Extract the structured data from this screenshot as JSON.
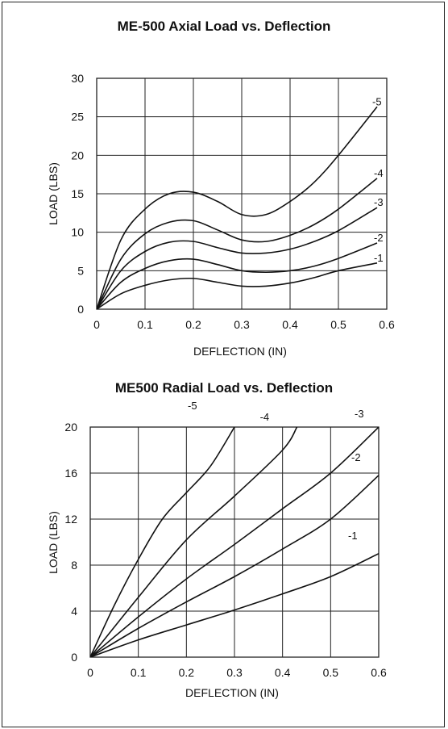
{
  "chart_data": [
    {
      "type": "line",
      "title": "ME-500 Axial Load vs. Deflection",
      "xlabel": "DEFLECTION (IN)",
      "ylabel": "LOAD (LBS)",
      "xlim": [
        0,
        0.6
      ],
      "ylim": [
        0,
        30
      ],
      "xticks": [
        0,
        0.1,
        0.2,
        0.3,
        0.4,
        0.5,
        0.6
      ],
      "yticks": [
        0,
        5,
        10,
        15,
        20,
        25,
        30
      ],
      "xtick_labels": [
        "0",
        "0.1",
        "0.2",
        "0.3",
        "0.4",
        "0.5",
        "0.6"
      ],
      "ytick_labels": [
        "0",
        "5",
        "10",
        "15",
        "20",
        "25",
        "30"
      ],
      "grid": true,
      "series": [
        {
          "name": "-1",
          "x": [
            0,
            0.05,
            0.1,
            0.15,
            0.2,
            0.25,
            0.3,
            0.35,
            0.4,
            0.45,
            0.5,
            0.58
          ],
          "y": [
            0,
            2.0,
            3.1,
            3.8,
            4.0,
            3.5,
            3.0,
            3.0,
            3.4,
            4.1,
            5.0,
            6.0
          ]
        },
        {
          "name": "-2",
          "x": [
            0,
            0.05,
            0.1,
            0.15,
            0.2,
            0.25,
            0.3,
            0.35,
            0.4,
            0.45,
            0.5,
            0.58
          ],
          "y": [
            0,
            3.5,
            5.3,
            6.3,
            6.5,
            5.8,
            5.0,
            4.8,
            5.0,
            5.6,
            6.6,
            8.6
          ]
        },
        {
          "name": "-3",
          "x": [
            0,
            0.05,
            0.1,
            0.15,
            0.2,
            0.25,
            0.3,
            0.35,
            0.4,
            0.45,
            0.5,
            0.58
          ],
          "y": [
            0,
            5.0,
            7.5,
            8.7,
            8.8,
            8.0,
            7.3,
            7.3,
            7.8,
            8.8,
            10.2,
            13.2
          ]
        },
        {
          "name": "-4",
          "x": [
            0,
            0.05,
            0.1,
            0.15,
            0.2,
            0.25,
            0.3,
            0.35,
            0.4,
            0.45,
            0.5,
            0.58
          ],
          "y": [
            0,
            6.5,
            9.8,
            11.3,
            11.5,
            10.3,
            9.0,
            8.8,
            9.6,
            11.0,
            13.0,
            17.0
          ]
        },
        {
          "name": "-5",
          "x": [
            0,
            0.05,
            0.1,
            0.15,
            0.2,
            0.25,
            0.3,
            0.35,
            0.4,
            0.45,
            0.5,
            0.58
          ],
          "y": [
            0,
            9.0,
            13.0,
            15.0,
            15.2,
            14.0,
            12.3,
            12.3,
            14.0,
            16.5,
            20.0,
            26.3
          ]
        }
      ]
    },
    {
      "type": "line",
      "title": "ME500 Radial Load vs. Deflection",
      "xlabel": "DEFLECTION (IN)",
      "ylabel": "LOAD (LBS)",
      "xlim": [
        0,
        0.6
      ],
      "ylim": [
        0,
        20
      ],
      "xticks": [
        0,
        0.1,
        0.2,
        0.3,
        0.4,
        0.5,
        0.6
      ],
      "yticks": [
        0,
        4,
        8,
        12,
        16,
        20
      ],
      "xtick_labels": [
        "0",
        "0.1",
        "0.2",
        "0.3",
        "0.4",
        "0.5",
        "0.6"
      ],
      "ytick_labels": [
        "0",
        "4",
        "8",
        "12",
        "16",
        "20"
      ],
      "grid": true,
      "series": [
        {
          "name": "-1",
          "x": [
            0,
            0.1,
            0.2,
            0.3,
            0.4,
            0.5,
            0.6
          ],
          "y": [
            0,
            1.5,
            2.8,
            4.1,
            5.5,
            7.0,
            9.0
          ]
        },
        {
          "name": "-2",
          "x": [
            0,
            0.1,
            0.2,
            0.3,
            0.4,
            0.5,
            0.6
          ],
          "y": [
            0,
            2.5,
            4.8,
            7.0,
            9.4,
            12.0,
            15.8
          ]
        },
        {
          "name": "-3",
          "x": [
            0,
            0.1,
            0.2,
            0.3,
            0.4,
            0.5,
            0.6
          ],
          "y": [
            0,
            3.5,
            6.8,
            9.8,
            12.9,
            16.0,
            20.0
          ]
        },
        {
          "name": "-4",
          "x": [
            0,
            0.1,
            0.2,
            0.3,
            0.4,
            0.43
          ],
          "y": [
            0,
            5.2,
            10.2,
            14.0,
            18.0,
            20.0
          ]
        },
        {
          "name": "-5",
          "x": [
            0,
            0.05,
            0.1,
            0.15,
            0.2,
            0.25,
            0.3
          ],
          "y": [
            0,
            4.5,
            8.5,
            12.0,
            14.3,
            16.6,
            20.0
          ]
        }
      ]
    }
  ]
}
